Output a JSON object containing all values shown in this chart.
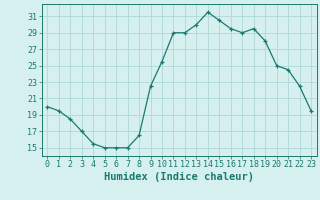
{
  "x": [
    0,
    1,
    2,
    3,
    4,
    5,
    6,
    7,
    8,
    9,
    10,
    11,
    12,
    13,
    14,
    15,
    16,
    17,
    18,
    19,
    20,
    21,
    22,
    23
  ],
  "y": [
    20,
    19.5,
    18.5,
    17,
    15.5,
    15,
    15,
    15,
    16.5,
    22.5,
    25.5,
    29,
    29,
    30,
    31.5,
    30.5,
    29.5,
    29,
    29.5,
    28,
    25,
    24.5,
    22.5,
    19.5
  ],
  "line_color": "#1a7a6e",
  "marker": "+",
  "bg_color": "#d6f0ef",
  "grid_color": "#b0d8d8",
  "xlabel": "Humidex (Indice chaleur)",
  "ylabel_ticks": [
    15,
    17,
    19,
    21,
    23,
    25,
    27,
    29,
    31
  ],
  "xlim": [
    -0.5,
    23.5
  ],
  "ylim": [
    14.0,
    32.5
  ],
  "tick_color": "#1a7a6e",
  "label_fontsize": 6.5,
  "xlabel_fontsize": 7.5
}
